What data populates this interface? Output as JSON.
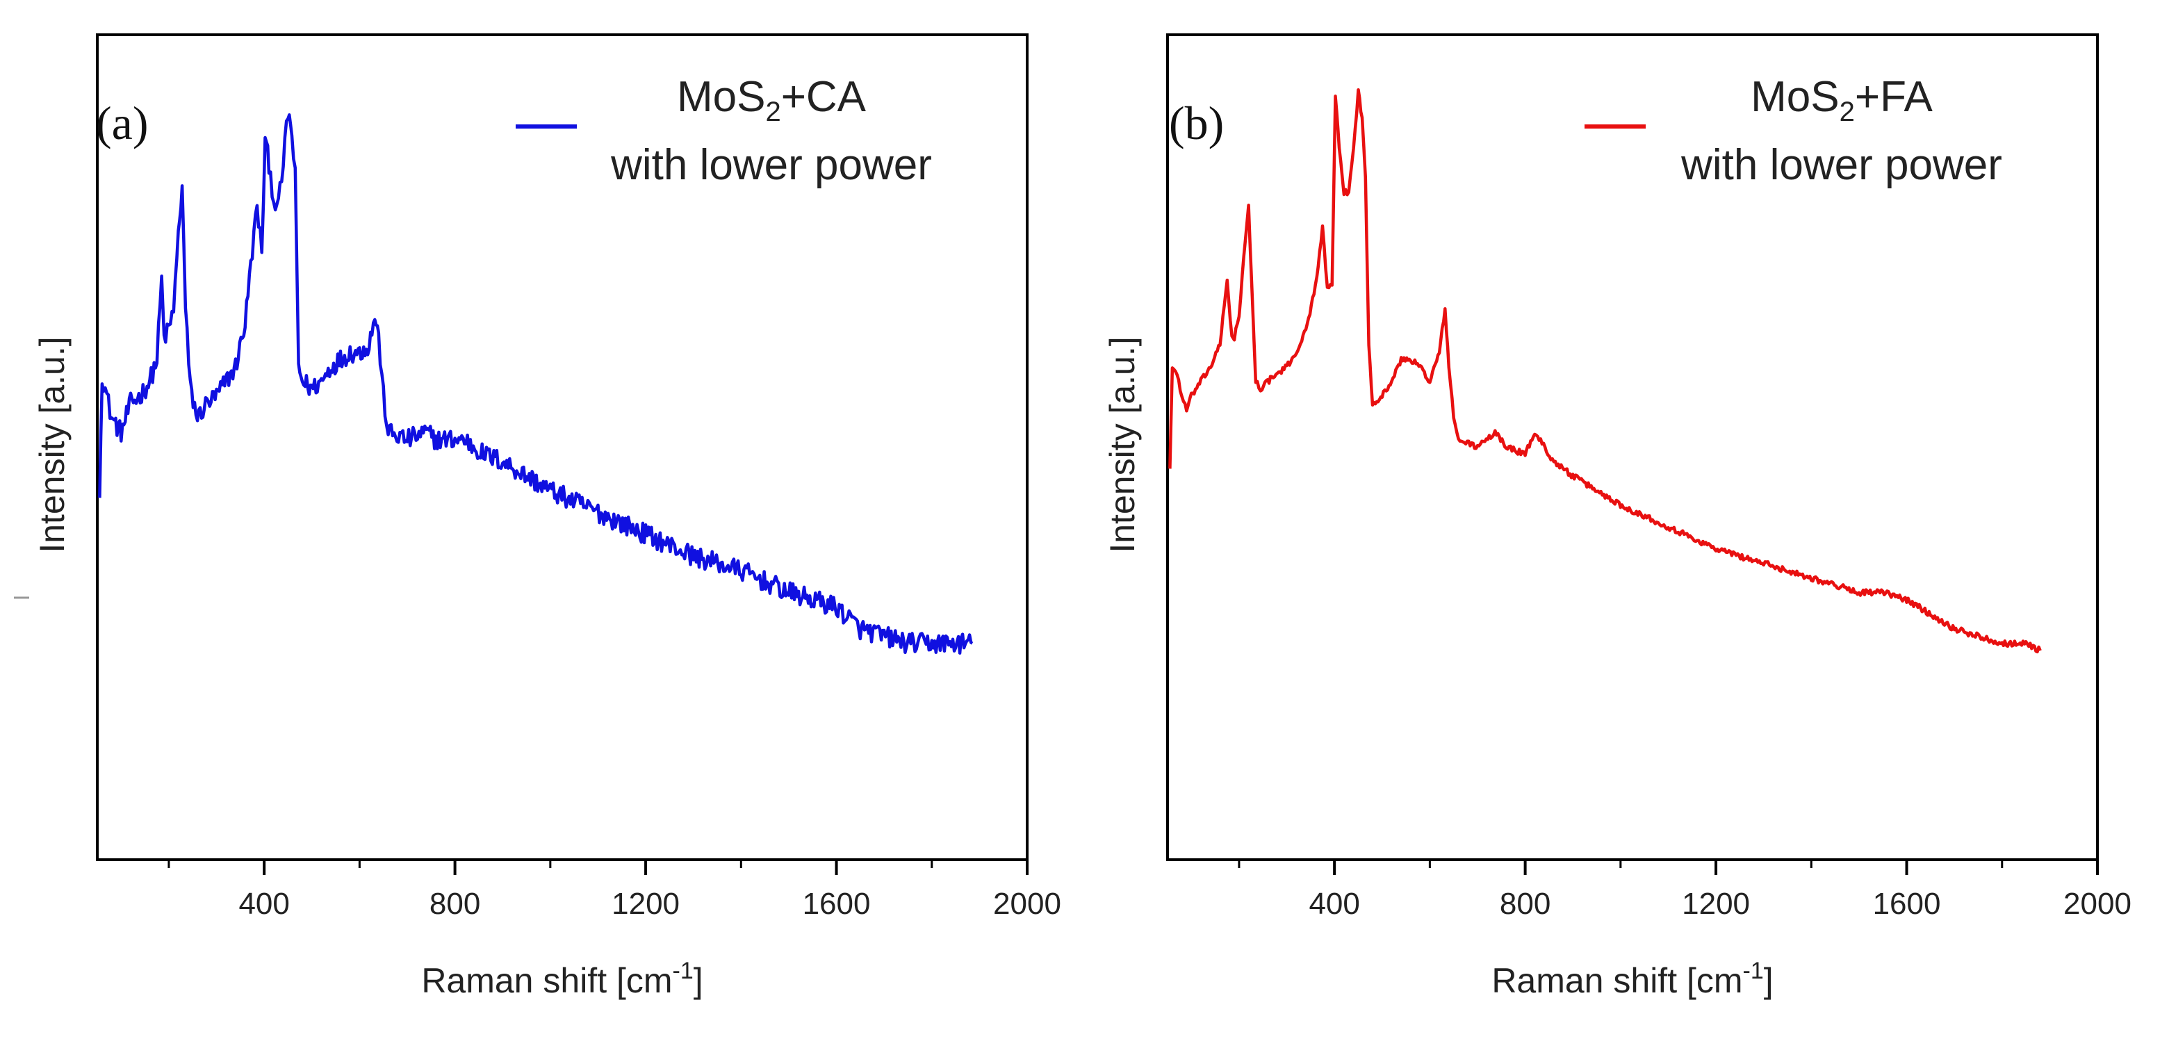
{
  "chart_data": [
    {
      "type": "line",
      "panel_label": "(a)",
      "title": "",
      "xlabel": "Raman shift [cm",
      "xlabel_sup": "-1",
      "xlabel_end": "]",
      "ylabel": "Intensity [a.u.]",
      "xlim": [
        50,
        2000
      ],
      "ylim": [
        0,
        1
      ],
      "xticks": [
        400,
        800,
        1200,
        1600,
        2000
      ],
      "xtick_labels": [
        "400",
        "800",
        "1200",
        "1600",
        "2000"
      ],
      "minor_xticks": [
        200,
        600,
        1000,
        1400,
        1800
      ],
      "legend_position": "top-right",
      "legend_line1_pre": "MoS",
      "legend_line1_sub": "2",
      "legend_line1_post": "+CA",
      "legend_line2": "with lower power",
      "series": [
        {
          "color": "#1010e0",
          "noise": 0.014,
          "x": [
            55,
            60,
            70,
            80,
            100,
            120,
            140,
            160,
            175,
            185,
            190,
            200,
            210,
            220,
            228,
            235,
            245,
            260,
            280,
            300,
            320,
            340,
            360,
            375,
            385,
            395,
            402,
            410,
            420,
            430,
            440,
            450,
            458,
            465,
            472,
            480,
            500,
            520,
            540,
            560,
            580,
            600,
            620,
            632,
            640,
            650,
            660,
            700,
            740,
            760,
            800,
            820,
            860,
            900,
            950,
            1000,
            1100,
            1200,
            1300,
            1400,
            1500,
            1550,
            1600,
            1650,
            1700,
            1750,
            1800,
            1850,
            1885
          ],
          "y": [
            0.44,
            0.61,
            0.58,
            0.55,
            0.53,
            0.57,
            0.58,
            0.6,
            0.63,
            0.74,
            0.66,
            0.67,
            0.7,
            0.8,
            0.87,
            0.7,
            0.59,
            0.55,
            0.57,
            0.58,
            0.6,
            0.62,
            0.68,
            0.78,
            0.84,
            0.78,
            0.93,
            0.9,
            0.85,
            0.84,
            0.9,
            0.97,
            0.94,
            0.88,
            0.62,
            0.6,
            0.59,
            0.6,
            0.62,
            0.63,
            0.64,
            0.64,
            0.65,
            0.69,
            0.66,
            0.58,
            0.53,
            0.52,
            0.53,
            0.52,
            0.52,
            0.52,
            0.5,
            0.49,
            0.47,
            0.45,
            0.42,
            0.39,
            0.36,
            0.34,
            0.31,
            0.3,
            0.29,
            0.26,
            0.25,
            0.24,
            0.24,
            0.24,
            0.24
          ]
        }
      ]
    },
    {
      "type": "line",
      "panel_label": "(b)",
      "title": "",
      "xlabel": "Raman shift [cm",
      "xlabel_sup": "-1",
      "xlabel_end": "]",
      "ylabel": "Intensity [a.u.]",
      "xlim": [
        50,
        2000
      ],
      "ylim": [
        0,
        1
      ],
      "xticks": [
        400,
        800,
        1200,
        1600,
        2000
      ],
      "xtick_labels": [
        "400",
        "800",
        "1200",
        "1600",
        "2000"
      ],
      "minor_xticks": [
        200,
        600,
        1000,
        1400,
        1800
      ],
      "legend_position": "top-right",
      "legend_line1_pre": "MoS",
      "legend_line1_sub": "2",
      "legend_line1_post": "+FA",
      "legend_line2": "with lower power",
      "series": [
        {
          "color": "#e81010",
          "noise": 0.004,
          "x": [
            55,
            60,
            70,
            80,
            90,
            100,
            120,
            140,
            160,
            175,
            185,
            190,
            200,
            210,
            220,
            228,
            235,
            245,
            260,
            280,
            300,
            320,
            340,
            360,
            375,
            385,
            395,
            402,
            410,
            420,
            430,
            440,
            450,
            458,
            465,
            472,
            480,
            500,
            520,
            540,
            560,
            580,
            600,
            620,
            632,
            640,
            650,
            660,
            700,
            740,
            760,
            800,
            820,
            860,
            900,
            950,
            1000,
            1100,
            1200,
            1300,
            1400,
            1500,
            1550,
            1600,
            1650,
            1700,
            1750,
            1800,
            1850,
            1880
          ],
          "y": [
            0.48,
            0.62,
            0.61,
            0.58,
            0.56,
            0.58,
            0.6,
            0.62,
            0.65,
            0.74,
            0.66,
            0.66,
            0.69,
            0.77,
            0.84,
            0.71,
            0.6,
            0.59,
            0.6,
            0.61,
            0.62,
            0.64,
            0.67,
            0.73,
            0.81,
            0.73,
            0.73,
            0.99,
            0.92,
            0.86,
            0.86,
            0.92,
            1.0,
            0.96,
            0.88,
            0.65,
            0.57,
            0.58,
            0.6,
            0.63,
            0.63,
            0.62,
            0.6,
            0.64,
            0.7,
            0.62,
            0.55,
            0.52,
            0.51,
            0.53,
            0.51,
            0.5,
            0.53,
            0.49,
            0.47,
            0.45,
            0.43,
            0.4,
            0.37,
            0.35,
            0.33,
            0.31,
            0.31,
            0.3,
            0.28,
            0.26,
            0.25,
            0.24,
            0.24,
            0.23
          ]
        }
      ]
    }
  ]
}
